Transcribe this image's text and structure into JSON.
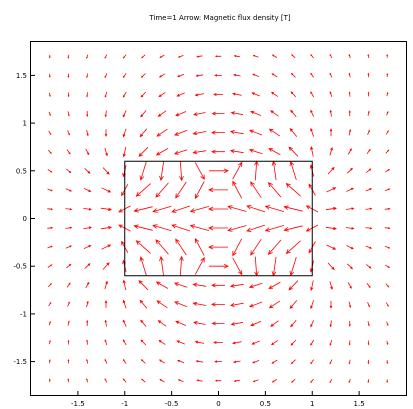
{
  "chart_data": {
    "type": "vector_field",
    "title": "Time=1   Arrow: Magnetic flux density [T]",
    "xlabel": "",
    "ylabel": "",
    "xlim": [
      -2.0,
      2.0
    ],
    "ylim": [
      -1.85,
      1.85
    ],
    "x_ticks": [
      -1.5,
      -1,
      -0.5,
      0,
      0.5,
      1,
      1.5
    ],
    "y_ticks": [
      1.5,
      1,
      0.5,
      0,
      -0.5,
      -1,
      -1.5
    ],
    "x_tick_labels": [
      "-1.5",
      "-1",
      "-0.5",
      "0",
      "0.5",
      "1",
      "1.5"
    ],
    "y_tick_labels": [
      "1.5",
      "1",
      "0.5",
      "0",
      "-0.5",
      "-1",
      "-1.5"
    ],
    "magnet_rect": {
      "x0": -1.0,
      "x1": 1.0,
      "y0": -0.6,
      "y1": 0.6
    },
    "arrow_grid": {
      "x_start": -1.8,
      "x_step": 0.2,
      "nx": 19,
      "y_start": -1.7,
      "y_step": 0.2,
      "ny": 18
    },
    "magnetization_direction": "+x",
    "arrow_color": "#ff0000",
    "grid": false
  }
}
